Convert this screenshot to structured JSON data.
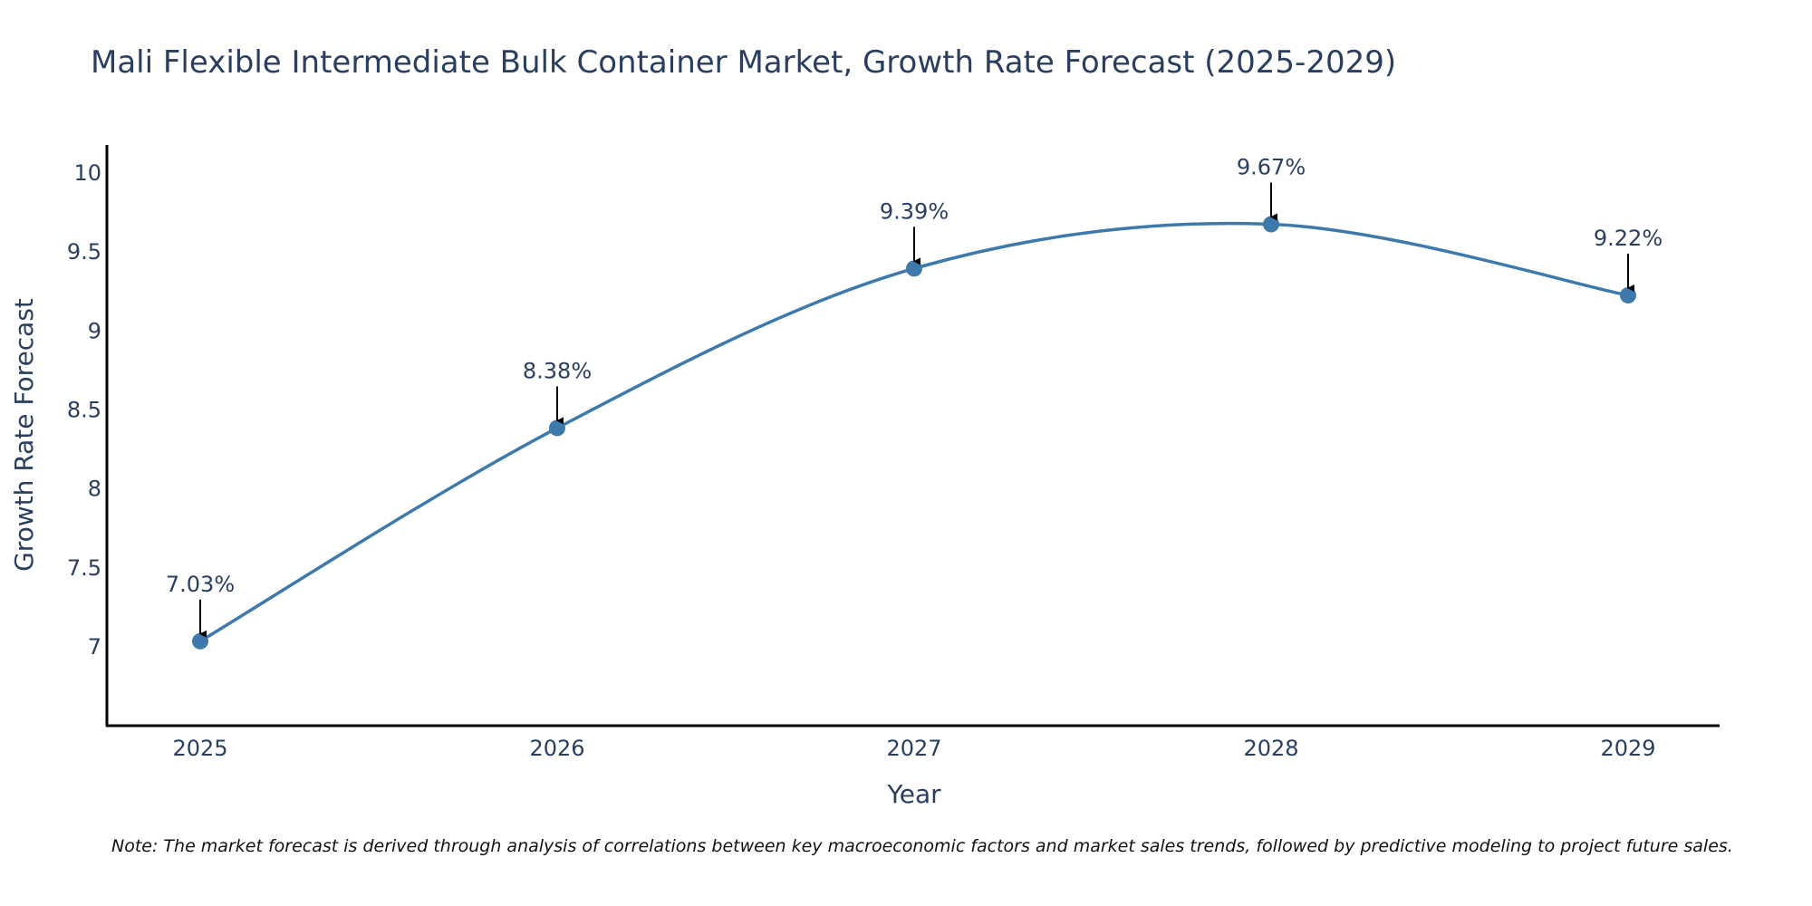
{
  "chart_data": {
    "type": "line",
    "title": "Mali Flexible Intermediate Bulk Container Market, Growth Rate Forecast (2025-2029)",
    "xlabel": "Year",
    "ylabel": "Growth Rate Forecast",
    "categories": [
      "2025",
      "2026",
      "2027",
      "2028",
      "2029"
    ],
    "series": [
      {
        "name": "Growth Rate Forecast",
        "values": [
          7.03,
          8.38,
          9.39,
          9.67,
          9.22
        ],
        "labels": [
          "7.03%",
          "8.38%",
          "9.39%",
          "9.67%",
          "9.22%"
        ],
        "color": "#3d7aab",
        "line_shape": "spline"
      }
    ],
    "yticks": [
      "7",
      "7.5",
      "8",
      "8.5",
      "9",
      "9.5",
      "10"
    ],
    "ytick_values": [
      7,
      7.5,
      8,
      8.5,
      9,
      9.5,
      10
    ],
    "ylim": [
      6.5,
      10.16
    ],
    "grid": false,
    "legend": "none",
    "annotation_arrow_color": "#000000",
    "note": "Note: The market forecast is derived through analysis of correlations between key macroeconomic factors and market sales trends, followed by predictive modeling to project future sales."
  }
}
